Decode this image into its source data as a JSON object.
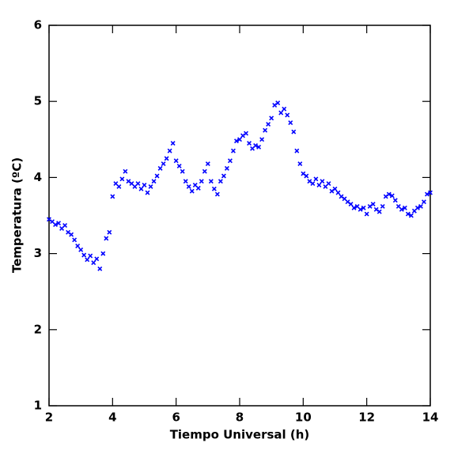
{
  "chart_data": {
    "type": "scatter",
    "x_label": "Tiempo Universal (h)",
    "y_label": "Temperatura (ºC)",
    "xlim": [
      2,
      14
    ],
    "ylim": [
      1,
      6
    ],
    "xticks": [
      2,
      4,
      6,
      8,
      10,
      12,
      14
    ],
    "yticks": [
      1,
      2,
      3,
      4,
      5,
      6
    ],
    "series": [
      {
        "color": "#0000ff",
        "x": [
          2.0,
          2.1,
          2.2,
          2.3,
          2.4,
          2.5,
          2.6,
          2.7,
          2.8,
          2.9,
          3.0,
          3.1,
          3.2,
          3.3,
          3.4,
          3.5,
          3.6,
          3.7,
          3.8,
          3.9,
          4.0,
          4.1,
          4.2,
          4.3,
          4.4,
          4.5,
          4.6,
          4.7,
          4.8,
          4.9,
          5.0,
          5.1,
          5.2,
          5.3,
          5.4,
          5.5,
          5.6,
          5.7,
          5.8,
          5.9,
          6.0,
          6.1,
          6.2,
          6.3,
          6.4,
          6.5,
          6.6,
          6.7,
          6.8,
          6.9,
          7.0,
          7.1,
          7.2,
          7.3,
          7.4,
          7.5,
          7.6,
          7.7,
          7.8,
          7.9,
          8.0,
          8.1,
          8.2,
          8.3,
          8.4,
          8.5,
          8.6,
          8.7,
          8.8,
          8.9,
          9.0,
          9.1,
          9.2,
          9.3,
          9.4,
          9.5,
          9.6,
          9.7,
          9.8,
          9.9,
          10.0,
          10.1,
          10.2,
          10.3,
          10.4,
          10.5,
          10.6,
          10.7,
          10.8,
          10.9,
          11.0,
          11.1,
          11.2,
          11.3,
          11.4,
          11.5,
          11.6,
          11.7,
          11.8,
          11.9,
          12.0,
          12.1,
          12.2,
          12.3,
          12.4,
          12.5,
          12.6,
          12.7,
          12.8,
          12.9,
          13.0,
          13.1,
          13.2,
          13.3,
          13.4,
          13.5,
          13.6,
          13.7,
          13.8,
          13.9,
          14.0
        ],
        "values": [
          3.45,
          3.42,
          3.38,
          3.4,
          3.33,
          3.37,
          3.28,
          3.25,
          3.18,
          3.1,
          3.05,
          2.98,
          2.92,
          2.97,
          2.88,
          2.93,
          2.8,
          3.0,
          3.2,
          3.28,
          3.75,
          3.92,
          3.88,
          3.98,
          4.08,
          3.95,
          3.92,
          3.88,
          3.92,
          3.85,
          3.9,
          3.8,
          3.88,
          3.95,
          4.02,
          4.12,
          4.18,
          4.25,
          4.35,
          4.45,
          4.22,
          4.15,
          4.08,
          3.95,
          3.88,
          3.82,
          3.9,
          3.86,
          3.95,
          4.08,
          4.18,
          3.95,
          3.85,
          3.78,
          3.95,
          4.02,
          4.12,
          4.22,
          4.35,
          4.48,
          4.5,
          4.55,
          4.58,
          4.45,
          4.38,
          4.42,
          4.4,
          4.5,
          4.62,
          4.7,
          4.78,
          4.95,
          4.98,
          4.85,
          4.9,
          4.82,
          4.72,
          4.6,
          4.35,
          4.18,
          4.05,
          4.02,
          3.95,
          3.92,
          3.98,
          3.9,
          3.95,
          3.88,
          3.92,
          3.82,
          3.85,
          3.8,
          3.75,
          3.72,
          3.68,
          3.65,
          3.6,
          3.62,
          3.58,
          3.6,
          3.52,
          3.62,
          3.65,
          3.58,
          3.55,
          3.62,
          3.75,
          3.78,
          3.76,
          3.7,
          3.62,
          3.58,
          3.6,
          3.52,
          3.5,
          3.56,
          3.6,
          3.62,
          3.68,
          3.78,
          3.8
        ]
      }
    ]
  }
}
